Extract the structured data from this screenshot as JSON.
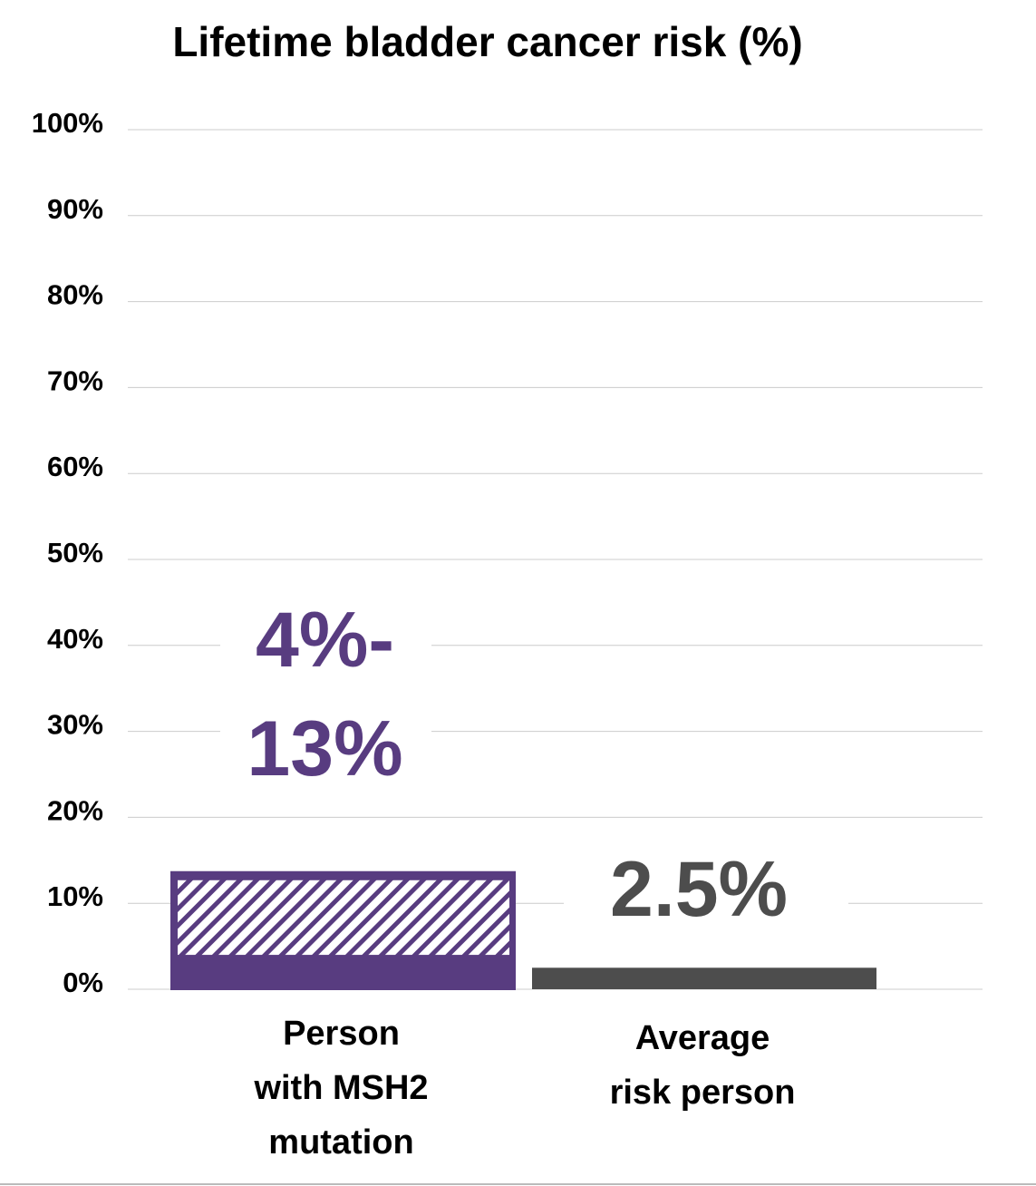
{
  "chart_data": {
    "type": "bar",
    "title": "Lifetime bladder cancer risk (%)",
    "xlabel": "",
    "ylabel": "",
    "ylim": [
      0,
      100
    ],
    "yticks": [
      "0%",
      "10%",
      "20%",
      "30%",
      "40%",
      "50%",
      "60%",
      "70%",
      "80%",
      "90%",
      "100%"
    ],
    "grid": true,
    "categories": [
      {
        "label_lines": [
          "Person",
          "with MSH2",
          "mutation"
        ],
        "range": [
          4,
          13
        ],
        "value_label_lines": [
          "4%-",
          "13%"
        ],
        "color": "#583c80",
        "hatched_range": true
      },
      {
        "label_lines": [
          "Average",
          "risk person"
        ],
        "value": 2.5,
        "value_label_lines": [
          "2.5%"
        ],
        "color": "#4d4d4d"
      }
    ],
    "colors": {
      "grid": "#cccccc",
      "text": "#000000"
    }
  }
}
